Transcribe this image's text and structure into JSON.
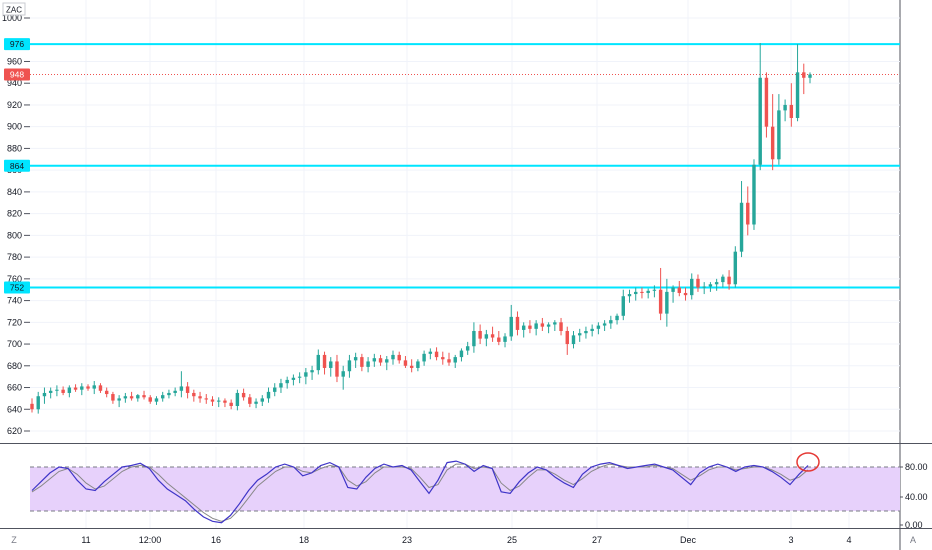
{
  "symbol": "ZAC",
  "bottom_left_label": "Z",
  "bottom_right_label": "A",
  "colors": {
    "up": "#26a69a",
    "down": "#ef5350",
    "hline": "#00e5ff",
    "current_price": "#ef5350",
    "stoch_k": "#3f35c8",
    "stoch_d": "#888888",
    "stoch_band": "#e7d1fb",
    "highlight_circle": "#e53935"
  },
  "chart_data": [
    {
      "type": "line",
      "subtype": "candlestick",
      "yticks": [
        620,
        640,
        660,
        680,
        700,
        720,
        740,
        760,
        780,
        800,
        820,
        840,
        860,
        880,
        900,
        920,
        940,
        960,
        1000
      ],
      "ylim": [
        605,
        1010
      ],
      "xticks": [
        "11",
        "12:00",
        "16",
        "18",
        "23",
        "25",
        "27",
        "Dec",
        "3",
        "4"
      ],
      "horizontal_lines": [
        {
          "label": "976",
          "value": 976
        },
        {
          "label": "864",
          "value": 864
        },
        {
          "label": "752",
          "value": 752
        }
      ],
      "current_price": {
        "label": "948",
        "value": 948
      },
      "ohlc_approx": [
        [
          645,
          650,
          637,
          640
        ],
        [
          640,
          656,
          636,
          652
        ],
        [
          652,
          660,
          645,
          655
        ],
        [
          655,
          660,
          650,
          657
        ],
        [
          657,
          662,
          652,
          658
        ],
        [
          658,
          661,
          653,
          655
        ],
        [
          655,
          662,
          651,
          660
        ],
        [
          660,
          663,
          656,
          658
        ],
        [
          658,
          664,
          653,
          661
        ],
        [
          661,
          663,
          657,
          659
        ],
        [
          659,
          666,
          654,
          662
        ],
        [
          662,
          664,
          655,
          657
        ],
        [
          657,
          660,
          651,
          654
        ],
        [
          654,
          656,
          645,
          648
        ],
        [
          648,
          653,
          642,
          650
        ],
        [
          650,
          655,
          646,
          652
        ],
        [
          652,
          656,
          648,
          650
        ],
        [
          650,
          654,
          647,
          653
        ],
        [
          653,
          657,
          649,
          651
        ],
        [
          651,
          653,
          645,
          647
        ],
        [
          647,
          652,
          644,
          650
        ],
        [
          650,
          656,
          647,
          653
        ],
        [
          653,
          658,
          650,
          655
        ],
        [
          655,
          660,
          652,
          657
        ],
        [
          657,
          675,
          651,
          661
        ],
        [
          661,
          665,
          650,
          655
        ],
        [
          655,
          658,
          647,
          652
        ],
        [
          652,
          656,
          646,
          650
        ],
        [
          650,
          654,
          645,
          649
        ],
        [
          649,
          652,
          643,
          647
        ],
        [
          647,
          651,
          642,
          648
        ],
        [
          648,
          650,
          642,
          646
        ],
        [
          646,
          649,
          640,
          643
        ],
        [
          643,
          658,
          639,
          655
        ],
        [
          655,
          659,
          648,
          651
        ],
        [
          651,
          654,
          642,
          645
        ],
        [
          645,
          650,
          641,
          647
        ],
        [
          647,
          653,
          643,
          650
        ],
        [
          650,
          660,
          646,
          656
        ],
        [
          656,
          664,
          652,
          660
        ],
        [
          660,
          668,
          655,
          664
        ],
        [
          664,
          670,
          659,
          667
        ],
        [
          667,
          672,
          662,
          669
        ],
        [
          669,
          674,
          664,
          670
        ],
        [
          670,
          678,
          663,
          674
        ],
        [
          674,
          680,
          667,
          676
        ],
        [
          676,
          695,
          672,
          690
        ],
        [
          690,
          693,
          672,
          678
        ],
        [
          678,
          688,
          670,
          684
        ],
        [
          684,
          690,
          665,
          670
        ],
        [
          670,
          680,
          658,
          675
        ],
        [
          675,
          690,
          669,
          685
        ],
        [
          685,
          692,
          678,
          688
        ],
        [
          688,
          691,
          675,
          679
        ],
        [
          679,
          688,
          674,
          684
        ],
        [
          684,
          691,
          679,
          687
        ],
        [
          687,
          690,
          680,
          683
        ],
        [
          683,
          689,
          676,
          686
        ],
        [
          686,
          694,
          681,
          690
        ],
        [
          690,
          693,
          682,
          685
        ],
        [
          685,
          689,
          678,
          680
        ],
        [
          680,
          686,
          674,
          678
        ],
        [
          678,
          686,
          675,
          684
        ],
        [
          684,
          694,
          680,
          691
        ],
        [
          691,
          696,
          686,
          693
        ],
        [
          693,
          697,
          685,
          688
        ],
        [
          688,
          693,
          681,
          686
        ],
        [
          686,
          692,
          680,
          683
        ],
        [
          683,
          690,
          678,
          688
        ],
        [
          688,
          696,
          684,
          694
        ],
        [
          694,
          702,
          690,
          698
        ],
        [
          698,
          720,
          692,
          712
        ],
        [
          712,
          718,
          700,
          705
        ],
        [
          705,
          713,
          698,
          709
        ],
        [
          709,
          716,
          702,
          706
        ],
        [
          706,
          712,
          699,
          702
        ],
        [
          702,
          710,
          697,
          707
        ],
        [
          707,
          736,
          703,
          725
        ],
        [
          725,
          730,
          708,
          713
        ],
        [
          713,
          720,
          706,
          717
        ],
        [
          717,
          722,
          710,
          714
        ],
        [
          714,
          722,
          708,
          719
        ],
        [
          719,
          724,
          712,
          716
        ],
        [
          716,
          720,
          710,
          718
        ],
        [
          718,
          722,
          712,
          720
        ],
        [
          720,
          724,
          708,
          712
        ],
        [
          712,
          716,
          690,
          700
        ],
        [
          700,
          712,
          696,
          708
        ],
        [
          708,
          714,
          702,
          710
        ],
        [
          710,
          716,
          705,
          712
        ],
        [
          712,
          718,
          707,
          714
        ],
        [
          714,
          720,
          709,
          717
        ],
        [
          717,
          722,
          712,
          719
        ],
        [
          719,
          726,
          714,
          722
        ],
        [
          722,
          728,
          718,
          726
        ],
        [
          726,
          750,
          722,
          744
        ],
        [
          744,
          750,
          738,
          746
        ],
        [
          746,
          752,
          740,
          748
        ],
        [
          748,
          752,
          742,
          747
        ],
        [
          747,
          751,
          742,
          749
        ],
        [
          749,
          754,
          743,
          750
        ],
        [
          750,
          770,
          722,
          728
        ],
        [
          728,
          760,
          716,
          748
        ],
        [
          748,
          754,
          738,
          752
        ],
        [
          752,
          758,
          744,
          747
        ],
        [
          747,
          752,
          740,
          745
        ],
        [
          745,
          765,
          741,
          760
        ],
        [
          760,
          764,
          748,
          752
        ],
        [
          752,
          757,
          746,
          753
        ],
        [
          753,
          757,
          748,
          755
        ],
        [
          755,
          760,
          749,
          757
        ],
        [
          757,
          764,
          752,
          762
        ],
        [
          762,
          768,
          750,
          755
        ],
        [
          755,
          790,
          752,
          785
        ],
        [
          785,
          850,
          780,
          830
        ],
        [
          830,
          845,
          800,
          810
        ],
        [
          810,
          870,
          805,
          865
        ],
        [
          865,
          977,
          860,
          945
        ],
        [
          945,
          950,
          890,
          900
        ],
        [
          900,
          930,
          860,
          870
        ],
        [
          870,
          930,
          865,
          915
        ],
        [
          915,
          925,
          905,
          920
        ],
        [
          920,
          940,
          900,
          908
        ],
        [
          908,
          976,
          905,
          950
        ],
        [
          950,
          958,
          930,
          945
        ],
        [
          945,
          950,
          940,
          948
        ]
      ]
    },
    {
      "type": "line",
      "subtype": "stochastic",
      "yticks": [
        "80.00",
        "40.00",
        "0.00"
      ],
      "ylim": [
        0,
        100
      ],
      "bands": [
        20,
        80
      ],
      "series": [
        {
          "values": [
            48,
            60,
            72,
            80,
            78,
            62,
            50,
            48,
            60,
            70,
            80,
            82,
            85,
            78,
            62,
            50,
            42,
            34,
            22,
            12,
            6,
            4,
            14,
            30,
            48,
            62,
            70,
            80,
            84,
            80,
            68,
            72,
            82,
            86,
            80,
            52,
            50,
            66,
            78,
            84,
            80,
            82,
            76,
            60,
            44,
            62,
            86,
            88,
            84,
            74,
            82,
            78,
            46,
            44,
            60,
            72,
            80,
            76,
            66,
            58,
            52,
            70,
            80,
            84,
            86,
            82,
            78,
            80,
            82,
            84,
            80,
            76,
            66,
            56,
            72,
            80,
            84,
            80,
            74,
            80,
            82,
            80,
            74,
            66,
            56,
            70,
            82
          ]
        },
        {
          "values": [
            46,
            54,
            64,
            74,
            78,
            70,
            58,
            50,
            54,
            64,
            74,
            80,
            82,
            80,
            70,
            58,
            48,
            38,
            28,
            18,
            10,
            6,
            10,
            22,
            38,
            54,
            64,
            74,
            80,
            80,
            74,
            72,
            78,
            82,
            80,
            62,
            54,
            60,
            72,
            80,
            80,
            80,
            78,
            66,
            52,
            56,
            76,
            84,
            84,
            78,
            80,
            78,
            58,
            48,
            54,
            66,
            76,
            76,
            70,
            62,
            56,
            64,
            74,
            80,
            84,
            82,
            80,
            80,
            80,
            82,
            80,
            78,
            70,
            62,
            68,
            76,
            80,
            80,
            76,
            78,
            80,
            80,
            76,
            70,
            62,
            66,
            76
          ]
        }
      ]
    }
  ]
}
